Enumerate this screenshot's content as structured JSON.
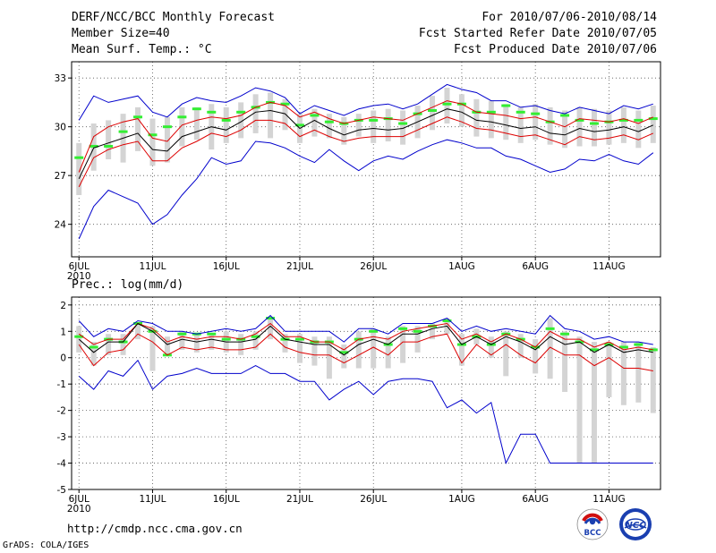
{
  "header": {
    "title": "DERF/NCC/BCC Monthly Forecast",
    "member_size": "Member Size=40",
    "period": "For 2010/07/06-2010/08/14",
    "start_date": "Fcst Started Refer Date 2010/07/05",
    "produced_date": "Fcst Produced Date 2010/07/06"
  },
  "footer": {
    "url": "http://cmdp.ncc.cma.gov.cn",
    "credit": "GrADS: COLA/IGES"
  },
  "logos": {
    "bcc": "BCC",
    "ncc": "NCC"
  },
  "chart_data": [
    {
      "type": "line",
      "title": "Mean Surf. Temp.: °C",
      "ylim": [
        22,
        34
      ],
      "yticks": [
        "33",
        "30",
        "27",
        "24"
      ],
      "ytick_values": [
        33,
        30,
        27,
        24
      ],
      "xlim": [
        0.5,
        40.5
      ],
      "xticks": [
        "6JUL",
        "11JUL",
        "16JUL",
        "21JUL",
        "26JUL",
        "1AUG",
        "6AUG",
        "11AUG"
      ],
      "xtick_days": [
        1,
        6,
        11,
        16,
        21,
        27,
        32,
        37
      ],
      "xtick_sub": "2010",
      "grid": true,
      "series": [
        {
          "name": "max",
          "color": "#0000cc",
          "values": [
            30.4,
            31.9,
            31.5,
            31.7,
            31.9,
            30.9,
            30.6,
            31.4,
            31.8,
            31.6,
            31.5,
            31.9,
            32.4,
            32.2,
            31.8,
            30.8,
            31.3,
            31.0,
            30.7,
            31.1,
            31.3,
            31.4,
            31.1,
            31.4,
            32.0,
            32.6,
            32.3,
            32.1,
            31.6,
            31.6,
            31.2,
            31.3,
            31.0,
            30.8,
            31.2,
            31.0,
            30.8,
            31.3,
            31.1,
            31.4
          ]
        },
        {
          "name": "min",
          "color": "#0000cc",
          "values": [
            23.1,
            25.1,
            26.1,
            25.7,
            25.3,
            24.0,
            24.6,
            25.8,
            26.8,
            28.1,
            27.7,
            27.9,
            29.1,
            29.0,
            28.7,
            28.2,
            27.8,
            28.6,
            27.9,
            27.3,
            27.9,
            28.2,
            28.0,
            28.5,
            28.9,
            29.2,
            29.0,
            28.7,
            28.7,
            28.2,
            28.0,
            27.6,
            27.2,
            27.4,
            28.0,
            27.9,
            28.3,
            27.9,
            27.7,
            28.4
          ]
        },
        {
          "name": "upper",
          "color": "#dd0000",
          "values": [
            27.2,
            29.4,
            30.0,
            30.3,
            30.5,
            29.3,
            29.1,
            30.1,
            30.4,
            30.6,
            30.5,
            30.7,
            31.2,
            31.5,
            31.3,
            30.6,
            30.9,
            30.5,
            30.2,
            30.4,
            30.6,
            30.5,
            30.4,
            30.8,
            31.2,
            31.6,
            31.4,
            30.9,
            30.8,
            30.7,
            30.5,
            30.6,
            30.3,
            30.0,
            30.5,
            30.4,
            30.3,
            30.5,
            30.2,
            30.6
          ]
        },
        {
          "name": "mean",
          "color": "#000000",
          "values": [
            26.8,
            28.7,
            29.0,
            29.3,
            29.6,
            28.6,
            28.5,
            29.4,
            29.7,
            30.0,
            29.8,
            30.3,
            30.9,
            31.0,
            30.8,
            29.9,
            30.4,
            29.9,
            29.5,
            29.8,
            29.9,
            29.8,
            29.9,
            30.3,
            30.7,
            31.1,
            30.9,
            30.4,
            30.3,
            30.1,
            29.9,
            30.0,
            29.6,
            29.5,
            29.9,
            29.7,
            29.8,
            30.0,
            29.7,
            30.1
          ]
        },
        {
          "name": "lower",
          "color": "#dd0000",
          "values": [
            26.3,
            28.1,
            28.6,
            28.9,
            29.1,
            27.9,
            27.9,
            28.7,
            29.1,
            29.6,
            29.4,
            29.8,
            30.4,
            30.4,
            30.2,
            29.4,
            29.8,
            29.4,
            29.1,
            29.3,
            29.4,
            29.4,
            29.4,
            29.8,
            30.2,
            30.6,
            30.3,
            29.9,
            29.8,
            29.6,
            29.4,
            29.5,
            29.2,
            28.9,
            29.4,
            29.2,
            29.3,
            29.5,
            29.2,
            29.6
          ]
        }
      ],
      "bars": {
        "name": "member spread",
        "color": "#d4d4d4",
        "low": [
          25.8,
          27.3,
          28.0,
          27.8,
          28.5,
          27.6,
          27.8,
          28.8,
          29.2,
          28.6,
          29.0,
          29.3,
          29.6,
          29.3,
          29.8,
          29.0,
          29.4,
          29.3,
          28.9,
          29.4,
          29.0,
          29.1,
          28.9,
          29.3,
          29.8,
          30.2,
          30.0,
          29.4,
          29.3,
          29.2,
          29.0,
          29.2,
          28.9,
          28.7,
          28.8,
          28.8,
          28.9,
          29.0,
          28.7,
          29.0
        ],
        "high": [
          29.0,
          30.2,
          30.4,
          30.8,
          31.2,
          30.5,
          30.6,
          31.2,
          31.2,
          31.4,
          31.2,
          31.5,
          32.0,
          32.1,
          31.7,
          30.8,
          31.1,
          30.8,
          30.6,
          30.8,
          31.0,
          31.1,
          31.0,
          31.3,
          31.9,
          32.4,
          32.0,
          31.7,
          31.6,
          31.4,
          31.2,
          31.4,
          31.2,
          31.0,
          31.2,
          31.1,
          31.0,
          31.2,
          31.0,
          31.3
        ]
      },
      "markers": {
        "name": "forecast",
        "color": "#33ee33",
        "values": [
          28.1,
          28.8,
          28.8,
          29.7,
          30.6,
          29.5,
          30.0,
          30.6,
          31.1,
          30.9,
          30.4,
          30.9,
          31.2,
          31.5,
          31.4,
          30.1,
          30.7,
          30.3,
          30.2,
          30.4,
          30.4,
          30.5,
          30.2,
          30.8,
          31.0,
          31.4,
          31.4,
          30.9,
          30.9,
          31.3,
          30.9,
          30.8,
          30.3,
          30.7,
          30.4,
          30.2,
          30.3,
          30.4,
          30.4,
          30.5
        ]
      }
    },
    {
      "type": "line",
      "title": "Prec.: log(mm/d)",
      "ylim": [
        -5,
        2.3
      ],
      "yticks": [
        "2",
        "1",
        "0",
        "-1",
        "-2",
        "-3",
        "-4",
        "-5"
      ],
      "ytick_values": [
        2,
        1,
        0,
        -1,
        -2,
        -3,
        -4,
        -5
      ],
      "xlim": [
        0.5,
        40.5
      ],
      "xticks": [
        "6JUL",
        "11JUL",
        "16JUL",
        "21JUL",
        "26JUL",
        "1AUG",
        "6AUG",
        "11AUG"
      ],
      "xtick_days": [
        1,
        6,
        11,
        16,
        21,
        27,
        32,
        37
      ],
      "xtick_sub": "2010",
      "grid": true,
      "series": [
        {
          "name": "max",
          "color": "#0000cc",
          "values": [
            1.4,
            0.8,
            1.1,
            1.0,
            1.4,
            1.3,
            1.0,
            1.0,
            0.9,
            1.0,
            1.1,
            1.0,
            1.1,
            1.6,
            1.0,
            1.0,
            1.0,
            1.0,
            0.6,
            1.1,
            1.1,
            0.9,
            1.3,
            1.3,
            1.3,
            1.5,
            1.0,
            1.2,
            1.0,
            1.1,
            1.0,
            0.9,
            1.6,
            1.1,
            1.0,
            0.7,
            0.8,
            0.6,
            0.6,
            0.5
          ]
        },
        {
          "name": "min",
          "color": "#0000cc",
          "values": [
            -0.7,
            -1.2,
            -0.5,
            -0.7,
            -0.1,
            -1.2,
            -0.7,
            -0.6,
            -0.4,
            -0.6,
            -0.6,
            -0.6,
            -0.3,
            -0.6,
            -0.6,
            -0.9,
            -0.9,
            -1.6,
            -1.2,
            -0.9,
            -1.4,
            -0.9,
            -0.8,
            -0.8,
            -0.9,
            -1.9,
            -1.6,
            -2.1,
            -1.7,
            -4.0,
            -2.9,
            -2.9,
            -4.0,
            -4.0,
            -4.0,
            -4.0,
            -4.0,
            -4.0,
            -4.0,
            -4.0
          ]
        },
        {
          "name": "upper",
          "color": "#dd0000",
          "values": [
            0.9,
            0.5,
            0.7,
            0.7,
            1.3,
            1.1,
            0.6,
            0.8,
            0.7,
            0.8,
            0.8,
            0.7,
            0.9,
            1.3,
            0.8,
            0.8,
            0.6,
            0.6,
            0.3,
            0.7,
            0.8,
            0.7,
            1.0,
            1.1,
            1.2,
            1.3,
            0.7,
            0.9,
            0.6,
            0.9,
            0.7,
            0.4,
            1.0,
            0.7,
            0.7,
            0.4,
            0.6,
            0.3,
            0.4,
            0.3
          ]
        },
        {
          "name": "mean",
          "color": "#000000",
          "values": [
            0.7,
            0.2,
            0.6,
            0.6,
            1.3,
            1.0,
            0.5,
            0.7,
            0.6,
            0.7,
            0.6,
            0.6,
            0.7,
            1.2,
            0.7,
            0.6,
            0.5,
            0.5,
            0.1,
            0.5,
            0.7,
            0.5,
            0.9,
            0.9,
            1.1,
            1.2,
            0.5,
            0.8,
            0.5,
            0.8,
            0.6,
            0.3,
            0.8,
            0.5,
            0.6,
            0.2,
            0.5,
            0.2,
            0.3,
            0.2
          ]
        },
        {
          "name": "lower",
          "color": "#dd0000",
          "values": [
            0.5,
            -0.3,
            0.2,
            0.3,
            0.9,
            0.6,
            0.1,
            0.4,
            0.3,
            0.4,
            0.3,
            0.3,
            0.4,
            0.9,
            0.4,
            0.2,
            0.1,
            0.1,
            -0.2,
            0.1,
            0.4,
            0.1,
            0.6,
            0.6,
            0.8,
            0.9,
            -0.2,
            0.5,
            0.1,
            0.5,
            0.1,
            -0.2,
            0.4,
            0.1,
            0.1,
            -0.3,
            0.0,
            -0.4,
            -0.4,
            -0.5
          ]
        }
      ],
      "bars": {
        "name": "member spread",
        "color": "#d4d4d4",
        "low": [
          0.2,
          -0.3,
          0.1,
          0.1,
          0.7,
          -0.5,
          0.1,
          0.3,
          0.2,
          0.3,
          0.2,
          0.1,
          0.3,
          0.7,
          0.2,
          -0.2,
          -0.3,
          -0.8,
          -0.4,
          -0.4,
          -0.4,
          -0.4,
          -0.2,
          0.2,
          0.7,
          0.9,
          -0.3,
          0.5,
          0.0,
          -0.7,
          0.0,
          -0.6,
          -0.8,
          -1.3,
          -4.0,
          -4.0,
          -1.5,
          -1.8,
          -1.7,
          -2.1
        ],
        "high": [
          1.2,
          0.6,
          0.9,
          0.9,
          1.3,
          1.2,
          0.8,
          1.0,
          0.9,
          0.9,
          1.0,
          0.9,
          1.0,
          1.5,
          0.9,
          0.9,
          0.8,
          0.8,
          0.5,
          1.0,
          1.1,
          0.8,
          1.2,
          1.2,
          1.3,
          1.5,
          0.9,
          1.1,
          0.8,
          1.0,
          0.9,
          0.7,
          1.5,
          1.0,
          0.8,
          0.6,
          0.6,
          0.6,
          0.6,
          0.4
        ]
      },
      "markers": {
        "name": "forecast",
        "color": "#33ee33",
        "values": [
          0.8,
          0.4,
          0.7,
          0.6,
          1.3,
          1.0,
          0.1,
          0.9,
          0.9,
          0.9,
          0.7,
          0.7,
          0.8,
          1.5,
          0.7,
          0.7,
          0.6,
          0.6,
          0.2,
          0.7,
          1.0,
          0.5,
          1.1,
          1.0,
          1.2,
          1.4,
          0.5,
          0.8,
          0.5,
          0.9,
          0.7,
          0.4,
          1.1,
          0.9,
          0.6,
          0.3,
          0.5,
          0.4,
          0.5,
          0.3
        ]
      }
    }
  ]
}
